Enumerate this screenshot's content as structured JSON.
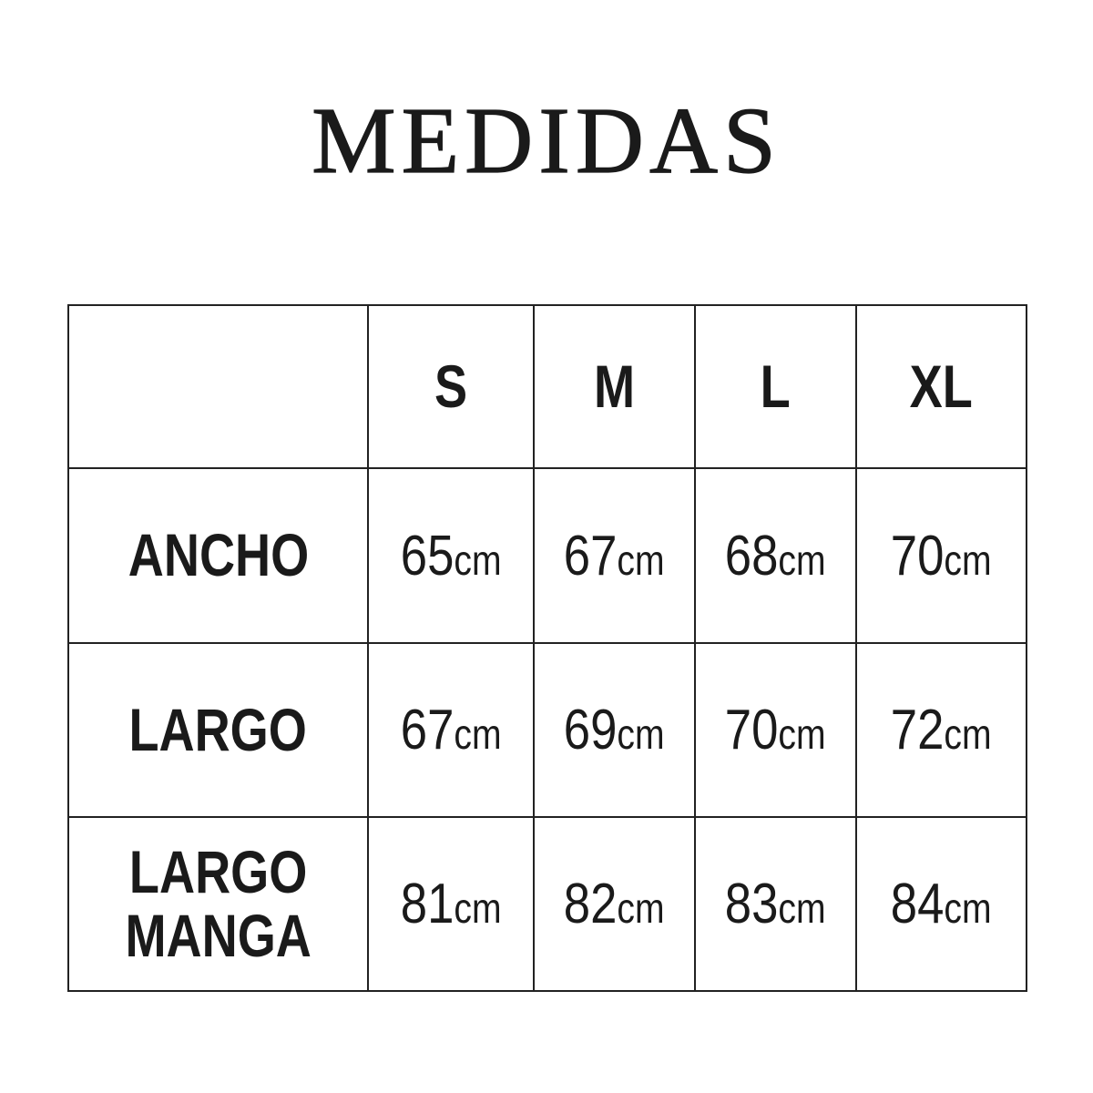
{
  "title": "MEDIDAS",
  "table": {
    "columns": [
      "",
      "S",
      "M",
      "L",
      "XL"
    ],
    "rows": [
      {
        "label_lines": [
          "ANCHO"
        ],
        "values": [
          "65",
          "67",
          "68",
          "70"
        ]
      },
      {
        "label_lines": [
          "LARGO"
        ],
        "values": [
          "67",
          "69",
          "70",
          "72"
        ]
      },
      {
        "label_lines": [
          "LARGO",
          "MANGA"
        ],
        "values": [
          "81",
          "82",
          "83",
          "84"
        ]
      }
    ],
    "unit": "cm"
  }
}
